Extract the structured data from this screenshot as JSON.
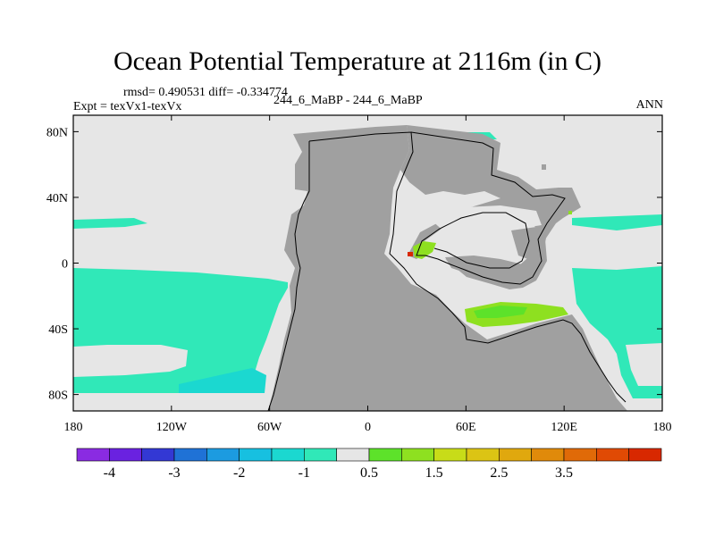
{
  "chart_data": {
    "type": "heatmap",
    "title": "Ocean Potential Temperature at 2116m (in C)",
    "stats": "rmsd= 0.490531 diff= -0.334774",
    "expt": "Expt = texVx1-texVx",
    "case": "244_6_MaBP - 244_6_MaBP",
    "season": "ANN",
    "xlim": [
      -180,
      180
    ],
    "ylim": [
      -90,
      90
    ],
    "x_ticks": [
      {
        "value": -180,
        "label": "180"
      },
      {
        "value": -120,
        "label": "120W"
      },
      {
        "value": -60,
        "label": "60W"
      },
      {
        "value": 0,
        "label": "0"
      },
      {
        "value": 60,
        "label": "60E"
      },
      {
        "value": 120,
        "label": "120E"
      },
      {
        "value": 180,
        "label": "180"
      }
    ],
    "y_ticks": [
      {
        "value": 80,
        "label": "80N"
      },
      {
        "value": 40,
        "label": "40N"
      },
      {
        "value": 0,
        "label": "0"
      },
      {
        "value": -40,
        "label": "40S"
      },
      {
        "value": -80,
        "label": "80S"
      }
    ],
    "colorbar": {
      "colors": [
        "#8a2be2",
        "#6a22e0",
        "#3338d4",
        "#1f72d6",
        "#1c9be0",
        "#17c0e0",
        "#1bd8d0",
        "#30e8b8",
        "#e6e6e6",
        "#5de22a",
        "#8ee020",
        "#c8dc18",
        "#dcc414",
        "#e0a80e",
        "#e08a0a",
        "#e06a08",
        "#e04a04",
        "#d82800"
      ],
      "labels": [
        {
          "boundary": 1,
          "label": "-4"
        },
        {
          "boundary": 3,
          "label": "-3"
        },
        {
          "boundary": 5,
          "label": "-2"
        },
        {
          "boundary": 7,
          "label": "-1"
        },
        {
          "boundary": 9,
          "label": "0.5"
        },
        {
          "boundary": 11,
          "label": "1.5"
        },
        {
          "boundary": 13,
          "label": "2.5"
        },
        {
          "boundary": 15,
          "label": "3.5"
        }
      ]
    },
    "regions": [
      {
        "name": "Land mask",
        "color": "#a0a0a0"
      },
      {
        "name": "Near zero difference (-0.5 to 0.5 C)",
        "color": "#e6e6e6"
      },
      {
        "name": "Cooling -1 to -0.5 C",
        "color": "#30e8b8"
      },
      {
        "name": "Cooling -1.5 to -1 C",
        "color": "#1bd8d0"
      },
      {
        "name": "Warming 0.5 to 1.5 C",
        "color": "#8ee020"
      },
      {
        "name": "Warming 3.5 to 4 C",
        "color": "#d82800"
      }
    ]
  }
}
